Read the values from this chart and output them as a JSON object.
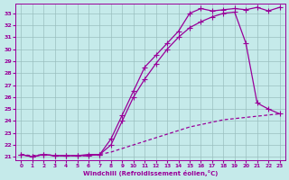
{
  "xlabel": "Windchill (Refroidissement éolien,°C)",
  "background_color": "#c5eaea",
  "grid_color": "#9bbfbf",
  "line_color": "#990099",
  "xlim": [
    -0.5,
    23.5
  ],
  "ylim": [
    20.7,
    33.8
  ],
  "yticks": [
    21,
    22,
    23,
    24,
    25,
    26,
    27,
    28,
    29,
    30,
    31,
    32,
    33
  ],
  "xticks": [
    0,
    1,
    2,
    3,
    4,
    5,
    6,
    7,
    8,
    9,
    10,
    11,
    12,
    13,
    14,
    15,
    16,
    17,
    18,
    19,
    20,
    21,
    22,
    23
  ],
  "line_dashed_x": [
    0,
    1,
    2,
    3,
    4,
    5,
    6,
    7,
    8,
    9,
    10,
    11,
    12,
    13,
    14,
    15,
    16,
    17,
    18,
    19,
    20,
    21,
    22,
    23
  ],
  "line_dashed_y": [
    21.2,
    21.1,
    21.2,
    21.1,
    21.1,
    21.1,
    21.1,
    21.2,
    21.4,
    21.7,
    22.0,
    22.3,
    22.6,
    22.9,
    23.2,
    23.5,
    23.7,
    23.9,
    24.1,
    24.2,
    24.3,
    24.4,
    24.5,
    24.6
  ],
  "line_high_x": [
    0,
    1,
    2,
    3,
    4,
    5,
    6,
    7,
    8,
    9,
    10,
    11,
    12,
    13,
    14,
    15,
    16,
    17,
    18,
    19,
    20,
    21,
    22,
    23
  ],
  "line_high_y": [
    21.2,
    21.0,
    21.2,
    21.1,
    21.1,
    21.1,
    21.1,
    21.2,
    22.5,
    24.5,
    26.5,
    28.5,
    29.5,
    30.5,
    31.5,
    33.0,
    33.4,
    33.2,
    33.3,
    33.4,
    33.3,
    33.5,
    33.2,
    33.5
  ],
  "line_peak_x": [
    0,
    1,
    2,
    3,
    4,
    5,
    6,
    7,
    8,
    9,
    10,
    11,
    12,
    13,
    14,
    15,
    16,
    17,
    18,
    19,
    20,
    21,
    22,
    23
  ],
  "line_peak_y": [
    21.2,
    21.0,
    21.2,
    21.1,
    21.1,
    21.1,
    21.2,
    21.2,
    22.0,
    24.0,
    26.0,
    27.5,
    28.8,
    30.0,
    31.0,
    31.8,
    32.3,
    32.7,
    33.0,
    33.1,
    30.5,
    25.5,
    25.0,
    24.6
  ],
  "markersize": 2.5,
  "linewidth": 0.9
}
